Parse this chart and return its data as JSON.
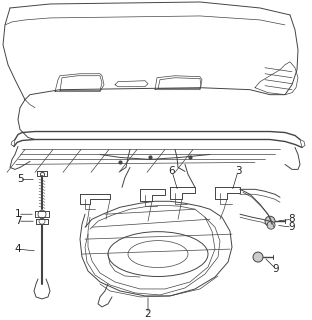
{
  "bg_color": "#ffffff",
  "line_color": "#444444",
  "label_color": "#222222",
  "figsize": [
    3.12,
    3.2
  ],
  "dpi": 100
}
